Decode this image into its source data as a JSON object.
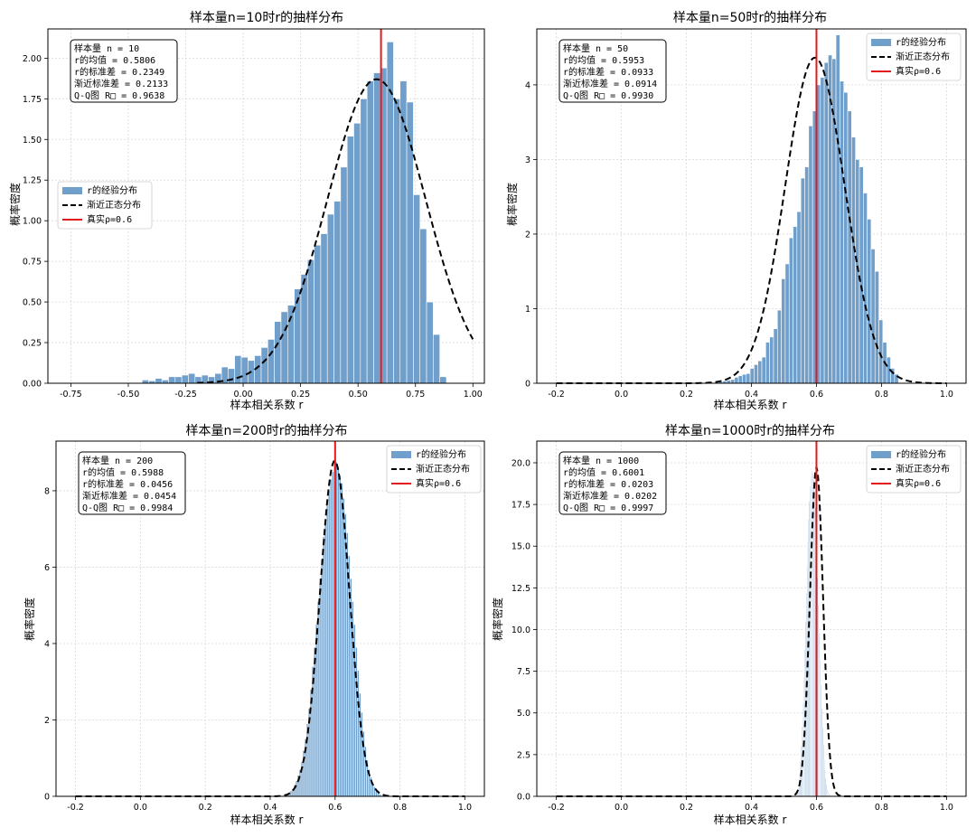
{
  "colors": {
    "hist_fill": "#6f9fca",
    "hist_edge": "#ffffff",
    "curve": "#000000",
    "true_line": "#e31a1c",
    "grid": "#d9d9d9"
  },
  "chart_data": [
    {
      "type": "bar",
      "title": "样本量n=10时r的抽样分布",
      "xlabel": "样本相关系数 r",
      "ylabel": "概率密度",
      "xlim": [
        -0.85,
        1.05
      ],
      "ylim": [
        0,
        2.18
      ],
      "xticks": [
        -0.75,
        -0.5,
        -0.25,
        0.0,
        0.25,
        0.5,
        0.75,
        1.0
      ],
      "xtick_labels": [
        "-0.75",
        "-0.50",
        "-0.25",
        "0.00",
        "0.25",
        "0.50",
        "0.75",
        "1.00"
      ],
      "yticks": [
        0,
        0.25,
        0.5,
        0.75,
        1.0,
        1.25,
        1.5,
        1.75,
        2.0
      ],
      "ytick_labels": [
        "0.00",
        "0.25",
        "0.50",
        "0.75",
        "1.00",
        "1.25",
        "1.50",
        "1.75",
        "2.00"
      ],
      "hist": {
        "bin_start": -0.44,
        "bin_width": 0.0288,
        "values": [
          0.02,
          0.015,
          0.03,
          0.02,
          0.04,
          0.04,
          0.05,
          0.06,
          0.04,
          0.05,
          0.04,
          0.06,
          0.1,
          0.09,
          0.17,
          0.16,
          0.14,
          0.17,
          0.22,
          0.27,
          0.38,
          0.44,
          0.48,
          0.58,
          0.67,
          0.76,
          0.85,
          0.92,
          1.04,
          1.12,
          1.33,
          1.52,
          1.6,
          1.75,
          1.86,
          1.91,
          1.94,
          2.1,
          1.75,
          1.86,
          1.73,
          1.16,
          0.95,
          0.5,
          0.3,
          0.04
        ]
      },
      "normal": {
        "mean": 0.5806,
        "sd": 0.2133,
        "x_range": [
          -0.2,
          1.0
        ]
      },
      "true_rho": 0.6,
      "legend": {
        "items": [
          "r的经验分布",
          "渐近正态分布",
          "真实ρ=0.6"
        ],
        "placement": "center-left"
      },
      "stats": [
        "样本量 n = 10",
        "r的均值 = 0.5806",
        "r的标准差 = 0.2349",
        "渐近标准差 = 0.2133",
        "Q-Q图 R□ = 0.9638"
      ]
    },
    {
      "type": "bar",
      "title": "样本量n=50时r的抽样分布",
      "xlabel": "样本相关系数 r",
      "ylabel": "概率密度",
      "xlim": [
        -0.26,
        1.06
      ],
      "ylim": [
        0,
        4.75
      ],
      "xticks": [
        -0.2,
        0.0,
        0.2,
        0.4,
        0.6,
        0.8,
        1.0
      ],
      "xtick_labels": [
        "-0.2",
        "0.0",
        "0.2",
        "0.4",
        "0.6",
        "0.8",
        "1.0"
      ],
      "yticks": [
        0,
        1,
        2,
        3,
        4
      ],
      "ytick_labels": [
        "0",
        "1",
        "2",
        "3",
        "4"
      ],
      "hist": {
        "bin_start": 0.3,
        "bin_width": 0.012,
        "values": [
          0.02,
          0.03,
          0.04,
          0.05,
          0.08,
          0.1,
          0.12,
          0.13,
          0.2,
          0.25,
          0.3,
          0.35,
          0.55,
          0.62,
          0.73,
          0.98,
          1.4,
          1.6,
          1.95,
          2.1,
          2.3,
          2.75,
          2.9,
          3.45,
          3.65,
          4.0,
          4.1,
          4.3,
          4.4,
          4.35,
          4.67,
          4.05,
          3.9,
          3.65,
          3.3,
          3.0,
          2.9,
          2.55,
          2.2,
          1.8,
          1.5,
          0.85,
          0.55,
          0.35,
          0.2,
          0.12
        ]
      },
      "normal": {
        "mean": 0.5953,
        "sd": 0.0914,
        "x_range": [
          -0.2,
          1.0
        ]
      },
      "true_rho": 0.6,
      "legend": {
        "items": [
          "r的经验分布",
          "渐近正态分布",
          "真实ρ=0.6"
        ],
        "placement": "top-right"
      },
      "stats": [
        "样本量 n = 50",
        "r的均值 = 0.5953",
        "r的标准差 = 0.0933",
        "渐近标准差 = 0.0914",
        "Q-Q图 R□ = 0.9930"
      ]
    },
    {
      "type": "bar",
      "title": "样本量n=200时r的抽样分布",
      "xlabel": "样本相关系数 r",
      "ylabel": "概率密度",
      "xlim": [
        -0.26,
        1.06
      ],
      "ylim": [
        0,
        9.3
      ],
      "xticks": [
        -0.2,
        0.0,
        0.2,
        0.4,
        0.6,
        0.8,
        1.0
      ],
      "xtick_labels": [
        "-0.2",
        "0.0",
        "0.2",
        "0.4",
        "0.6",
        "0.8",
        "1.0"
      ],
      "yticks": [
        0,
        2,
        4,
        6,
        8
      ],
      "ytick_labels": [
        "0",
        "2",
        "4",
        "6",
        "8"
      ],
      "hist": {
        "bin_start": 0.45,
        "bin_width": 0.0056,
        "values": [
          0.05,
          0.1,
          0.15,
          0.2,
          0.3,
          0.4,
          0.55,
          0.7,
          0.9,
          1.2,
          1.5,
          1.9,
          2.3,
          2.8,
          3.4,
          3.9,
          4.5,
          5.1,
          5.7,
          6.2,
          6.8,
          7.2,
          7.6,
          8.0,
          8.3,
          8.5,
          8.7,
          8.75,
          8.6,
          8.4,
          8.2,
          7.8,
          7.4,
          6.9,
          6.3,
          5.7,
          5.1,
          4.5,
          3.9,
          3.3,
          2.7,
          2.2,
          1.7,
          1.3,
          0.95,
          0.7,
          0.5,
          0.35,
          0.25,
          0.15,
          0.1,
          0.05
        ]
      },
      "normal": {
        "mean": 0.5988,
        "sd": 0.0454,
        "x_range": [
          -0.2,
          1.0
        ]
      },
      "true_rho": 0.6,
      "legend": {
        "items": [
          "r的经验分布",
          "渐近正态分布",
          "真实ρ=0.6"
        ],
        "placement": "top-right"
      },
      "stats": [
        "样本量 n = 200",
        "r的均值 = 0.5988",
        "r的标准差 = 0.0456",
        "渐近标准差 = 0.0454",
        "Q-Q图 R□ = 0.9984"
      ]
    },
    {
      "type": "bar",
      "title": "样本量n=1000时r的抽样分布",
      "xlabel": "样本相关系数 r",
      "ylabel": "概率密度",
      "xlim": [
        -0.26,
        1.06
      ],
      "ylim": [
        0,
        21.3
      ],
      "xticks": [
        -0.2,
        0.0,
        0.2,
        0.4,
        0.6,
        0.8,
        1.0
      ],
      "xtick_labels": [
        "-0.2",
        "0.0",
        "0.2",
        "0.4",
        "0.6",
        "0.8",
        "1.0"
      ],
      "yticks": [
        0,
        2.5,
        5.0,
        7.5,
        10.0,
        12.5,
        15.0,
        17.5,
        20.0
      ],
      "ytick_labels": [
        "0.0",
        "2.5",
        "5.0",
        "7.5",
        "10.0",
        "12.5",
        "15.0",
        "17.5",
        "20.0"
      ],
      "hist": {
        "bin_start": 0.54,
        "bin_width": 0.0025,
        "values": [
          0.3,
          0.5,
          0.9,
          1.4,
          2.1,
          3.0,
          4.2,
          5.6,
          7.1,
          8.8,
          10.5,
          12.2,
          13.8,
          15.3,
          16.6,
          17.7,
          18.6,
          19.2,
          19.5,
          19.4,
          19.0,
          18.3,
          17.3,
          16.1,
          14.7,
          13.1,
          11.5,
          9.8,
          8.2,
          6.7,
          5.3,
          4.1,
          3.1,
          2.2,
          1.6,
          1.1,
          0.7,
          0.4,
          0.25,
          0.15,
          0.1,
          0.05,
          0.03,
          0.02,
          0.01,
          0.01,
          0.01,
          0.01
        ]
      },
      "normal": {
        "mean": 0.6001,
        "sd": 0.0202,
        "x_range": [
          -0.2,
          1.0
        ]
      },
      "true_rho": 0.6,
      "legend": {
        "items": [
          "r的经验分布",
          "渐近正态分布",
          "真实ρ=0.6"
        ],
        "placement": "top-right"
      },
      "stats": [
        "样本量 n = 1000",
        "r的均值 = 0.6001",
        "r的标准差 = 0.0203",
        "渐近标准差 = 0.0202",
        "Q-Q图 R□ = 0.9997"
      ]
    }
  ]
}
